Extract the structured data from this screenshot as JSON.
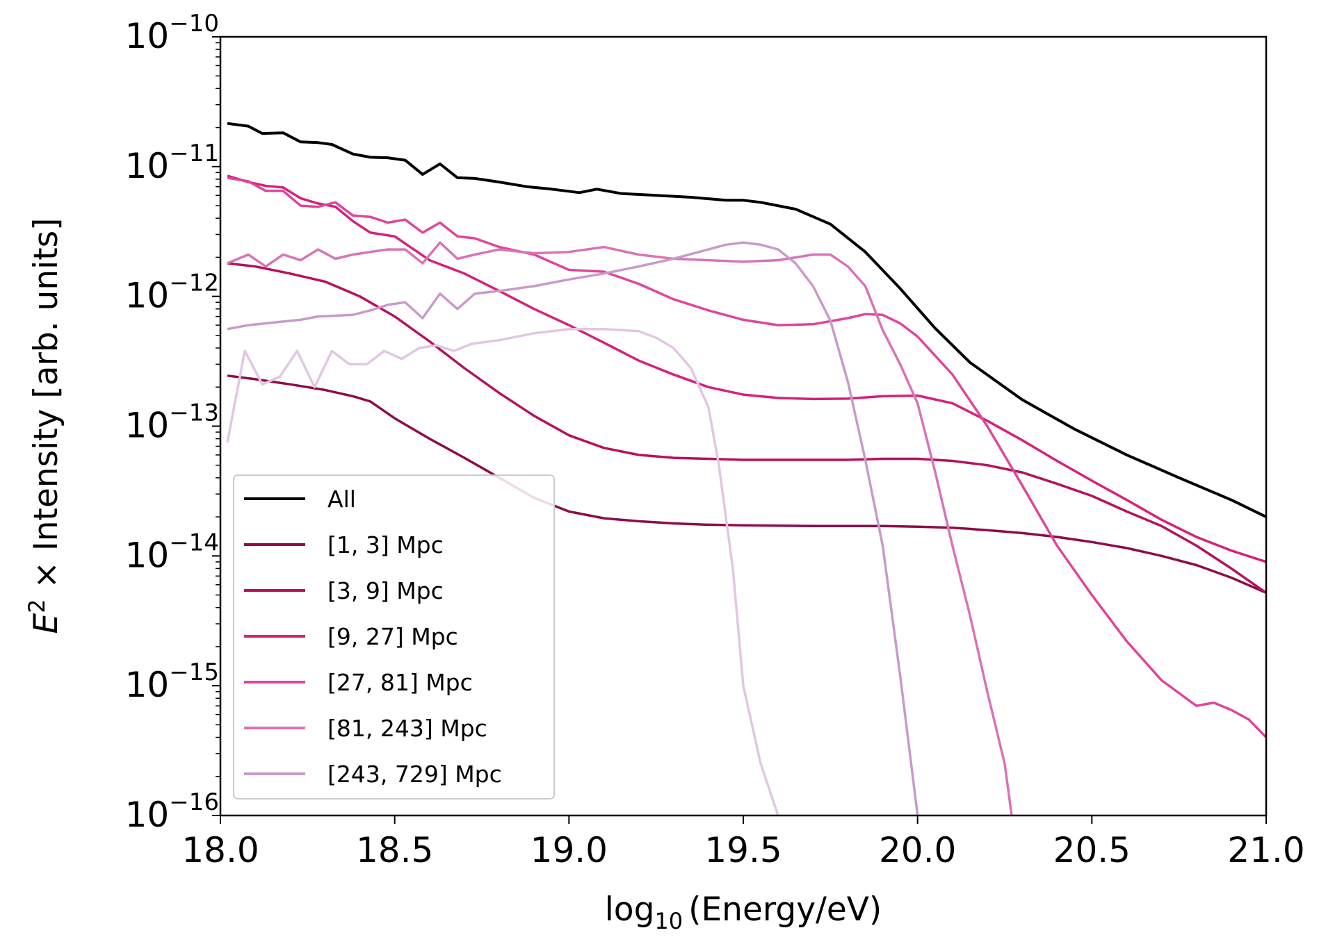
{
  "chart_data": {
    "type": "line",
    "xlabel": {
      "main": "log",
      "sub": "10",
      "rest": "(Energy/eV)"
    },
    "ylabel": {
      "base": "E",
      "exp": "2",
      "rest": " × Intensity [arb. units]"
    },
    "xlim": [
      18.0,
      21.0
    ],
    "ylim": [
      1e-16,
      1e-10
    ],
    "yscale": "log",
    "xticks": [
      {
        "value": 18.0,
        "label": "18.0"
      },
      {
        "value": 18.5,
        "label": "18.5"
      },
      {
        "value": 19.0,
        "label": "19.0"
      },
      {
        "value": 19.5,
        "label": "19.5"
      },
      {
        "value": 20.0,
        "label": "20.0"
      },
      {
        "value": 20.5,
        "label": "20.5"
      },
      {
        "value": 21.0,
        "label": "21.0"
      }
    ],
    "yticks": [
      {
        "exp": -16,
        "base": "10",
        "sup": "−16"
      },
      {
        "exp": -15,
        "base": "10",
        "sup": "−15"
      },
      {
        "exp": -14,
        "base": "10",
        "sup": "−14"
      },
      {
        "exp": -13,
        "base": "10",
        "sup": "−13"
      },
      {
        "exp": -12,
        "base": "10",
        "sup": "−12"
      },
      {
        "exp": -11,
        "base": "10",
        "sup": "−11"
      },
      {
        "exp": -10,
        "base": "10",
        "sup": "−10"
      }
    ],
    "legend_position": "lower-left",
    "series": [
      {
        "name": "All",
        "color": "#000000",
        "x": [
          18.02,
          18.08,
          18.12,
          18.18,
          18.23,
          18.28,
          18.32,
          18.38,
          18.43,
          18.48,
          18.53,
          18.58,
          18.63,
          18.68,
          18.73,
          18.8,
          18.88,
          18.95,
          19.03,
          19.08,
          19.15,
          19.25,
          19.35,
          19.45,
          19.5,
          19.55,
          19.65,
          19.75,
          19.85,
          19.95,
          20.05,
          20.15,
          20.3,
          20.45,
          20.6,
          20.75,
          20.9,
          21.0
        ],
        "y": [
          2.15e-11,
          2.05e-11,
          1.8e-11,
          1.82e-11,
          1.55e-11,
          1.53e-11,
          1.48e-11,
          1.25e-11,
          1.18e-11,
          1.17e-11,
          1.12e-11,
          8.7e-12,
          1.05e-11,
          8.2e-12,
          8.1e-12,
          7.6e-12,
          7e-12,
          6.7e-12,
          6.3e-12,
          6.7e-12,
          6.2e-12,
          6e-12,
          5.8e-12,
          5.5e-12,
          5.5e-12,
          5.3e-12,
          4.7e-12,
          3.6e-12,
          2.2e-12,
          1.15e-12,
          5.7e-13,
          3.1e-13,
          1.6e-13,
          9.5e-14,
          6e-14,
          4e-14,
          2.7e-14,
          2e-14
        ]
      },
      {
        "name": "[1, 3] Mpc",
        "color": "#8e0c47",
        "x": [
          18.02,
          18.1,
          18.2,
          18.3,
          18.38,
          18.43,
          18.5,
          18.6,
          18.7,
          18.8,
          18.9,
          19.0,
          19.1,
          19.2,
          19.3,
          19.4,
          19.5,
          19.6,
          19.7,
          19.8,
          19.9,
          20.0,
          20.1,
          20.2,
          20.3,
          20.4,
          20.5,
          20.6,
          20.7,
          20.8,
          20.9,
          21.0
        ],
        "y": [
          2.45e-13,
          2.3e-13,
          2.1e-13,
          1.9e-13,
          1.7e-13,
          1.55e-13,
          1.15e-13,
          8e-14,
          5.7e-14,
          4e-14,
          2.8e-14,
          2.2e-14,
          1.95e-14,
          1.85e-14,
          1.78e-14,
          1.74e-14,
          1.72e-14,
          1.71e-14,
          1.7e-14,
          1.7e-14,
          1.7e-14,
          1.68e-14,
          1.65e-14,
          1.58e-14,
          1.5e-14,
          1.4e-14,
          1.28e-14,
          1.15e-14,
          1e-14,
          8.5e-15,
          6.8e-15,
          5.2e-15
        ]
      },
      {
        "name": "[3, 9] Mpc",
        "color": "#b5125d",
        "x": [
          18.02,
          18.1,
          18.2,
          18.3,
          18.4,
          18.5,
          18.6,
          18.7,
          18.8,
          18.9,
          19.0,
          19.1,
          19.2,
          19.3,
          19.4,
          19.5,
          19.6,
          19.7,
          19.8,
          19.9,
          20.0,
          20.1,
          20.2,
          20.3,
          20.4,
          20.5,
          20.6,
          20.7,
          20.8,
          20.9,
          21.0
        ],
        "y": [
          1.8e-12,
          1.7e-12,
          1.5e-12,
          1.3e-12,
          1e-12,
          7e-13,
          4.5e-13,
          2.8e-13,
          1.8e-13,
          1.2e-13,
          8.5e-14,
          6.8e-14,
          6e-14,
          5.7e-14,
          5.6e-14,
          5.5e-14,
          5.5e-14,
          5.5e-14,
          5.5e-14,
          5.6e-14,
          5.6e-14,
          5.4e-14,
          5e-14,
          4.4e-14,
          3.6e-14,
          2.9e-14,
          2.2e-14,
          1.7e-14,
          1.2e-14,
          8e-15,
          5.2e-15
        ]
      },
      {
        "name": "[9, 27] Mpc",
        "color": "#d6217a",
        "x": [
          18.02,
          18.08,
          18.13,
          18.18,
          18.23,
          18.28,
          18.33,
          18.38,
          18.43,
          18.5,
          18.6,
          18.7,
          18.8,
          18.9,
          19.0,
          19.1,
          19.2,
          19.3,
          19.4,
          19.5,
          19.6,
          19.7,
          19.8,
          19.9,
          20.0,
          20.1,
          20.2,
          20.3,
          20.4,
          20.5,
          20.6,
          20.7,
          20.8,
          20.9,
          21.0
        ],
        "y": [
          8.5e-12,
          7.6e-12,
          7.1e-12,
          6.9e-12,
          5.7e-12,
          5.2e-12,
          4.9e-12,
          3.8e-12,
          3.1e-12,
          2.9e-12,
          1.9e-12,
          1.5e-12,
          1.1e-12,
          8e-13,
          6e-13,
          4.4e-13,
          3.2e-13,
          2.5e-13,
          2e-13,
          1.75e-13,
          1.65e-13,
          1.62e-13,
          1.63e-13,
          1.7e-13,
          1.72e-13,
          1.5e-13,
          1.1e-13,
          7.8e-14,
          5.4e-14,
          3.8e-14,
          2.7e-14,
          1.9e-14,
          1.4e-14,
          1.1e-14,
          9e-15
        ]
      },
      {
        "name": "[27, 81] Mpc",
        "color": "#e0459a",
        "x": [
          18.02,
          18.08,
          18.13,
          18.18,
          18.23,
          18.28,
          18.33,
          18.38,
          18.43,
          18.48,
          18.53,
          18.58,
          18.63,
          18.68,
          18.73,
          18.8,
          18.9,
          19.0,
          19.1,
          19.2,
          19.3,
          19.4,
          19.5,
          19.6,
          19.7,
          19.8,
          19.85,
          19.9,
          19.95,
          20.0,
          20.1,
          20.2,
          20.3,
          20.4,
          20.5,
          20.6,
          20.7,
          20.8,
          20.85,
          20.9,
          20.95,
          21.0
        ],
        "y": [
          8.2e-12,
          7.7e-12,
          6.5e-12,
          6.5e-12,
          5e-12,
          4.9e-12,
          5.3e-12,
          4.2e-12,
          4.1e-12,
          3.7e-12,
          3.9e-12,
          3.1e-12,
          3.7e-12,
          2.9e-12,
          2.8e-12,
          2.4e-12,
          2.1e-12,
          1.6e-12,
          1.55e-12,
          1.25e-12,
          9.5e-13,
          7.8e-13,
          6.6e-13,
          6e-13,
          6.1e-13,
          6.8e-13,
          7.3e-13,
          7.2e-13,
          6.2e-13,
          4.9e-13,
          2.5e-13,
          1e-13,
          3.5e-14,
          1.2e-14,
          5e-15,
          2.2e-15,
          1.1e-15,
          7e-16,
          7.4e-16,
          6.5e-16,
          5.5e-16,
          4e-16
        ]
      },
      {
        "name": "[81, 243] Mpc",
        "color": "#d973b6",
        "x": [
          18.02,
          18.08,
          18.13,
          18.18,
          18.23,
          18.28,
          18.33,
          18.38,
          18.43,
          18.48,
          18.53,
          18.58,
          18.63,
          18.68,
          18.73,
          18.8,
          18.9,
          19.0,
          19.1,
          19.2,
          19.3,
          19.4,
          19.5,
          19.6,
          19.7,
          19.75,
          19.8,
          19.85,
          19.9,
          19.95,
          20.0,
          20.05,
          20.1,
          20.15,
          20.2,
          20.25,
          20.27
        ],
        "y": [
          1.8e-12,
          2.1e-12,
          1.7e-12,
          2.1e-12,
          1.9e-12,
          2.3e-12,
          1.95e-12,
          2.1e-12,
          2.2e-12,
          2.3e-12,
          2.3e-12,
          1.8e-12,
          2.6e-12,
          1.95e-12,
          2.1e-12,
          2.3e-12,
          2.15e-12,
          2.2e-12,
          2.4e-12,
          2.1e-12,
          1.95e-12,
          1.9e-12,
          1.85e-12,
          1.9e-12,
          2.1e-12,
          2.1e-12,
          1.7e-12,
          1.2e-12,
          5.5e-13,
          3e-13,
          1.5e-13,
          4.5e-14,
          1.2e-14,
          3.5e-15,
          9e-16,
          2.5e-16,
          1e-16
        ]
      },
      {
        "name": "[243, 729] Mpc",
        "color": "#c99ac9",
        "x": [
          18.02,
          18.08,
          18.13,
          18.18,
          18.23,
          18.28,
          18.33,
          18.38,
          18.43,
          18.48,
          18.53,
          18.58,
          18.63,
          18.68,
          18.73,
          18.8,
          18.9,
          19.0,
          19.1,
          19.2,
          19.3,
          19.4,
          19.45,
          19.5,
          19.55,
          19.6,
          19.65,
          19.7,
          19.75,
          19.8,
          19.85,
          19.9,
          19.95,
          20.0
        ],
        "y": [
          5.6e-13,
          6e-13,
          6.2e-13,
          6.4e-13,
          6.6e-13,
          7e-13,
          7.1e-13,
          7.2e-13,
          7.8e-13,
          8.6e-13,
          9e-13,
          6.8e-13,
          1.05e-12,
          8e-13,
          1.05e-12,
          1.1e-12,
          1.2e-12,
          1.35e-12,
          1.5e-12,
          1.7e-12,
          1.95e-12,
          2.3e-12,
          2.5e-12,
          2.6e-12,
          2.5e-12,
          2.3e-12,
          1.8e-12,
          1.2e-12,
          6.5e-13,
          2.2e-13,
          5.5e-14,
          1.2e-14,
          1.2e-15,
          1e-16
        ]
      },
      {
        "name": "",
        "color": "#e2c6e2",
        "x": [
          18.02,
          18.07,
          18.12,
          18.17,
          18.22,
          18.27,
          18.32,
          18.37,
          18.42,
          18.47,
          18.52,
          18.57,
          18.62,
          18.67,
          18.72,
          18.8,
          18.9,
          19.0,
          19.1,
          19.2,
          19.25,
          19.3,
          19.35,
          19.4,
          19.43,
          19.47,
          19.5,
          19.55,
          19.6
        ],
        "y": [
          7.5e-14,
          3.8e-13,
          2.1e-13,
          2.4e-13,
          3.8e-13,
          2e-13,
          3.8e-13,
          3e-13,
          3e-13,
          3.8e-13,
          3.3e-13,
          4e-13,
          4.2e-13,
          3.8e-13,
          4.3e-13,
          4.6e-13,
          5.2e-13,
          5.6e-13,
          5.6e-13,
          5.4e-13,
          4.8e-13,
          4e-13,
          2.8e-13,
          1.4e-13,
          5e-14,
          8e-15,
          1e-15,
          2.5e-16,
          1e-16
        ]
      }
    ]
  }
}
